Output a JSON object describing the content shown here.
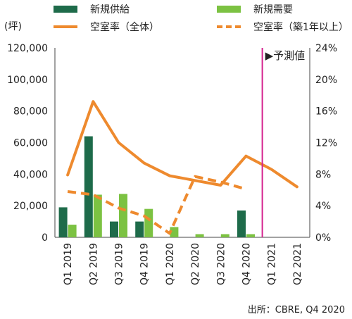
{
  "chart_data": {
    "type": "bar",
    "y_left_unit": "(坪)",
    "categories": [
      "Q1 2019",
      "Q2 2019",
      "Q3 2019",
      "Q4 2019",
      "Q1 2020",
      "Q2 2020",
      "Q3 2020",
      "Q4 2020",
      "Q1 2021",
      "Q2 2021"
    ],
    "ylim_left": [
      0,
      120000
    ],
    "yticks_left": [
      "0",
      "20,000",
      "40,000",
      "60,000",
      "80,000",
      "100,000",
      "120,000"
    ],
    "ylim_right": [
      0,
      24
    ],
    "yticks_right": [
      "0%",
      "4%",
      "8%",
      "12%",
      "16%",
      "20%",
      "24%"
    ],
    "series": [
      {
        "name": "新規供給",
        "kind": "bar",
        "axis": "left",
        "color": "#1e6b4a",
        "values": [
          19000,
          64000,
          10000,
          10000,
          0,
          0,
          0,
          17000,
          null,
          null
        ]
      },
      {
        "name": "新規需要",
        "kind": "bar",
        "axis": "left",
        "color": "#7cc242",
        "values": [
          8000,
          27000,
          27500,
          18000,
          6500,
          2000,
          2000,
          2000,
          null,
          null
        ]
      },
      {
        "name": "空室率（全体）",
        "kind": "line",
        "axis": "right",
        "color": "#ee8a2e",
        "dashed": false,
        "values": [
          7.9,
          17.2,
          12.0,
          9.4,
          7.8,
          7.2,
          6.6,
          10.3,
          8.6,
          6.4
        ]
      },
      {
        "name": "空室率（築1年以上）",
        "kind": "line",
        "axis": "right",
        "color": "#ee8a2e",
        "dashed": true,
        "values": [
          5.8,
          5.4,
          3.7,
          2.7,
          0.5,
          7.7,
          7.0,
          6.1,
          null,
          null
        ]
      }
    ],
    "forecast_marker": {
      "label": "▶予測値",
      "after_category": "Q4 2020",
      "color": "#d4218e"
    },
    "grid": false,
    "legend_position": "top",
    "source_note": "出所：CBRE, Q4 2020"
  }
}
